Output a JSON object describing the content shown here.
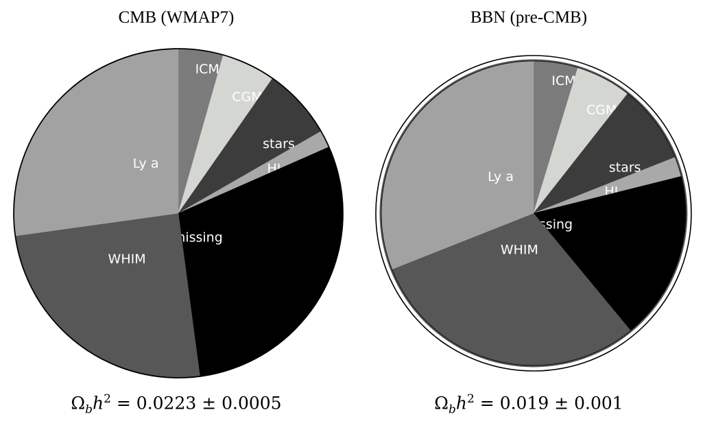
{
  "chart_data": [
    {
      "type": "pie",
      "title": "CMB (WMAP7)",
      "caption_lhs": "Ω",
      "caption_sub": "b",
      "caption_h": "h",
      "caption_sup": "2",
      "caption_rhs": " = 0.0223 ± 0.0005",
      "outline": "thin",
      "slices": [
        {
          "label": "ICM",
          "value": 4.4,
          "color": "#7b7b7b"
        },
        {
          "label": "CGM",
          "value": 5.3,
          "color": "#d4d6d2"
        },
        {
          "label": "stars",
          "value": 7.0,
          "color": "#3c3c3c"
        },
        {
          "label": "HI",
          "value": 1.7,
          "color": "#a9a9a9"
        },
        {
          "label": "missing",
          "value": 29.5,
          "color": "#000000"
        },
        {
          "label": "WHIM",
          "value": 24.9,
          "color": "#575757"
        },
        {
          "label": "Ly a",
          "value": 27.2,
          "color": "#a2a2a2"
        }
      ]
    },
    {
      "type": "pie",
      "title": "BBN (pre-CMB)",
      "caption_lhs": "Ω",
      "caption_sub": "b",
      "caption_h": "h",
      "caption_sup": "2",
      "caption_rhs": " = 0.019 ± 0.001",
      "outline": "double",
      "slices": [
        {
          "label": "ICM",
          "value": 4.7,
          "color": "#7b7b7b"
        },
        {
          "label": "CGM",
          "value": 5.9,
          "color": "#d4d6d2"
        },
        {
          "label": "stars",
          "value": 8.4,
          "color": "#3c3c3c"
        },
        {
          "label": "HI",
          "value": 2.1,
          "color": "#a9a9a9"
        },
        {
          "label": "missing",
          "value": 17.9,
          "color": "#000000"
        },
        {
          "label": "WHIM",
          "value": 30.0,
          "color": "#575757"
        },
        {
          "label": "Ly a",
          "value": 31.0,
          "color": "#a2a2a2"
        }
      ]
    }
  ]
}
